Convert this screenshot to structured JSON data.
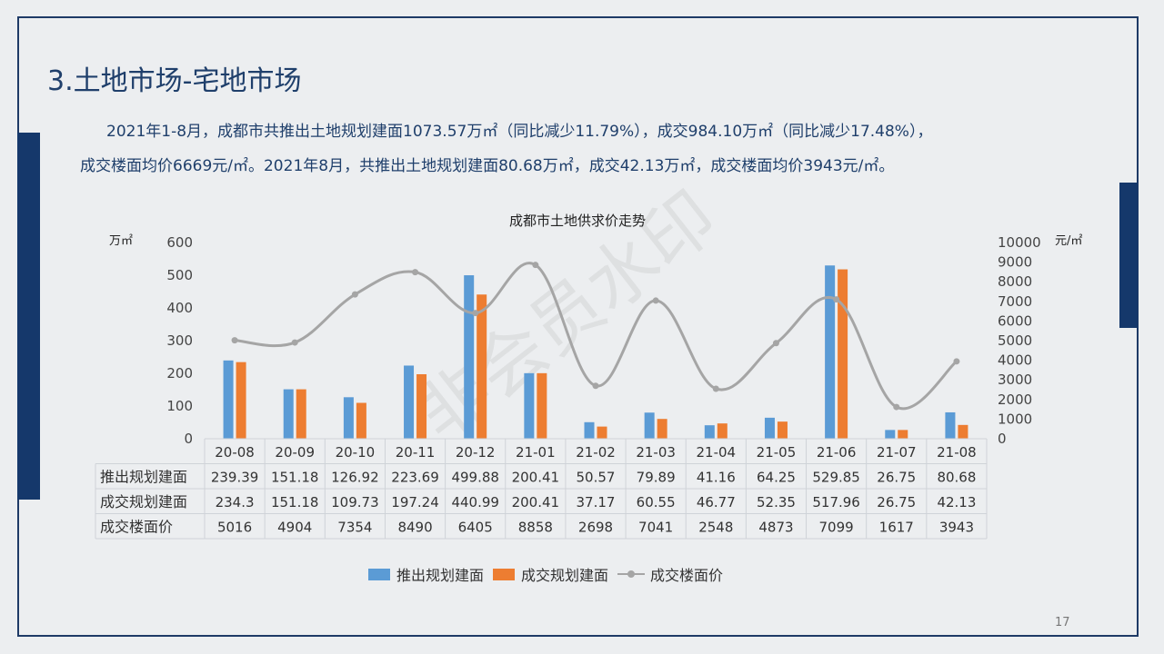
{
  "slide": {
    "title": "3.土地市场-宅地市场",
    "paragraph1": "2021年1-8月，成都市共推出土地规划建面1073.57万㎡（同比减少11.79%），成交984.10万㎡（同比减少17.48%），",
    "paragraph2": "成交楼面均价6669元/㎡。2021年8月，共推出土地规划建面80.68万㎡，成交42.13万㎡，成交楼面均价3943元/㎡。",
    "page_number": "17",
    "watermark": "非会员水印"
  },
  "colors": {
    "supply": "#5b9bd5",
    "deal": "#ed7d31",
    "price": "#a5a5a5",
    "accent": "#15386b"
  },
  "chart_data": {
    "type": "bar",
    "title": "成都市土地供求价走势",
    "ylabel_left": "万㎡",
    "ylabel_right": "元/㎡",
    "ylim_left": [
      0,
      600
    ],
    "ylim_right": [
      0,
      10000
    ],
    "yticks_left": [
      0,
      100,
      200,
      300,
      400,
      500,
      600
    ],
    "yticks_right": [
      0,
      1000,
      2000,
      3000,
      4000,
      5000,
      6000,
      7000,
      8000,
      9000,
      10000
    ],
    "categories": [
      "20-08",
      "20-09",
      "20-10",
      "20-11",
      "20-12",
      "21-01",
      "21-02",
      "21-03",
      "21-04",
      "21-05",
      "21-06",
      "21-07",
      "21-08"
    ],
    "series": [
      {
        "name": "推出规划建面",
        "type": "bar",
        "axis": "left",
        "values": [
          239.39,
          151.18,
          126.92,
          223.69,
          499.88,
          200.41,
          50.57,
          79.89,
          41.16,
          64.25,
          529.85,
          26.75,
          80.68
        ]
      },
      {
        "name": "成交规划建面",
        "type": "bar",
        "axis": "left",
        "values": [
          234.3,
          151.18,
          109.73,
          197.24,
          440.99,
          200.41,
          37.17,
          60.55,
          46.77,
          52.35,
          517.96,
          26.75,
          42.13
        ]
      },
      {
        "name": "成交楼面价",
        "type": "line",
        "axis": "right",
        "values": [
          5016,
          4904,
          7354,
          8490,
          6405,
          8858,
          2698,
          7041,
          2548,
          4873,
          7099,
          1617,
          3943
        ]
      }
    ],
    "table_labels": [
      "推出规划建面",
      "成交规划建面",
      "成交楼面价"
    ],
    "table_values": [
      [
        "239.39",
        "151.18",
        "126.92",
        "223.69",
        "499.88",
        "200.41",
        "50.57",
        "79.89",
        "41.16",
        "64.25",
        "529.85",
        "26.75",
        "80.68"
      ],
      [
        "234.3",
        "151.18",
        "109.73",
        "197.24",
        "440.99",
        "200.41",
        "37.17",
        "60.55",
        "46.77",
        "52.35",
        "517.96",
        "26.75",
        "42.13"
      ],
      [
        "5016",
        "4904",
        "7354",
        "8490",
        "6405",
        "8858",
        "2698",
        "7041",
        "2548",
        "4873",
        "7099",
        "1617",
        "3943"
      ]
    ],
    "legend": [
      "推出规划建面",
      "成交规划建面",
      "成交楼面价"
    ],
    "legend_position": "bottom",
    "grid": false
  }
}
